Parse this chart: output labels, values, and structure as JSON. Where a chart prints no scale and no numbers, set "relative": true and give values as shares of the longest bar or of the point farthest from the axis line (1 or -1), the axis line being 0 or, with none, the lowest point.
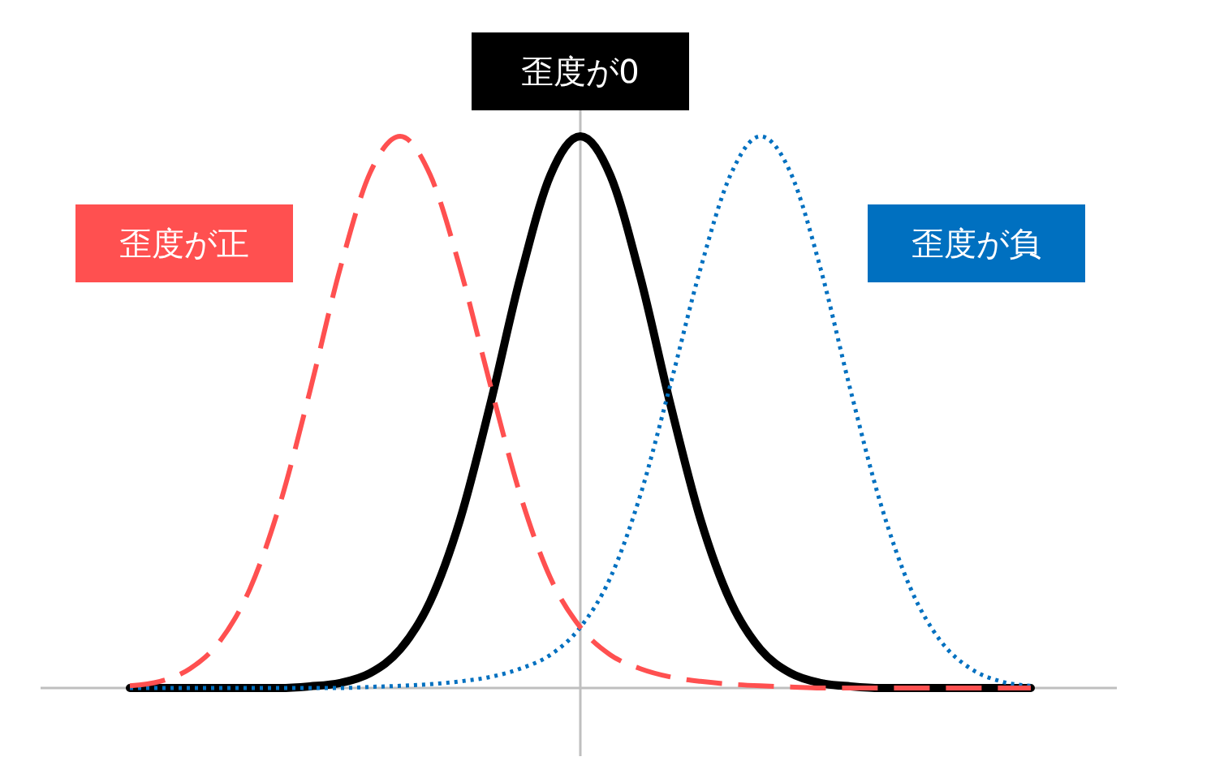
{
  "chart_data": {
    "type": "line",
    "relative": true,
    "categories": [
      null,
      null,
      null,
      null,
      null,
      null,
      null,
      null,
      null,
      null,
      null,
      null,
      null,
      null,
      null,
      null,
      null,
      null,
      null,
      null,
      null,
      null,
      null,
      null,
      null,
      null,
      null,
      null,
      null,
      null,
      null
    ],
    "marker": "none",
    "series": [
      {
        "name": "歪度が0",
        "color": "#000000",
        "line_style": "solid",
        "values": [
          0,
          0,
          0,
          0,
          0,
          0,
          0.003,
          0.009,
          0.027,
          0.07,
          0.157,
          0.306,
          0.514,
          0.744,
          0.929,
          1,
          0.929,
          0.744,
          0.514,
          0.306,
          0.157,
          0.07,
          0.027,
          0.009,
          0.003,
          0,
          0,
          0,
          0,
          0,
          0
        ]
      },
      {
        "name": "歪度が負",
        "color": "#0070c0",
        "line_style": "dotted",
        "values": [
          0,
          0,
          0,
          0,
          0,
          0,
          0,
          0,
          0.002,
          0.004,
          0.007,
          0.012,
          0.02,
          0.035,
          0.06,
          0.11,
          0.2,
          0.35,
          0.55,
          0.76,
          0.93,
          1,
          0.934,
          0.76,
          0.539,
          0.334,
          0.18,
          0.085,
          0.035,
          0.012,
          0.004
        ]
      },
      {
        "name": "歪度が正",
        "color": "#ff5050",
        "line_style": "dashed",
        "values": [
          0.004,
          0.012,
          0.035,
          0.085,
          0.18,
          0.334,
          0.539,
          0.76,
          0.934,
          1,
          0.93,
          0.76,
          0.55,
          0.35,
          0.2,
          0.11,
          0.06,
          0.035,
          0.02,
          0.012,
          0.007,
          0.004,
          0.002,
          0,
          0,
          0,
          0,
          0,
          0,
          0,
          0
        ]
      }
    ]
  }
}
